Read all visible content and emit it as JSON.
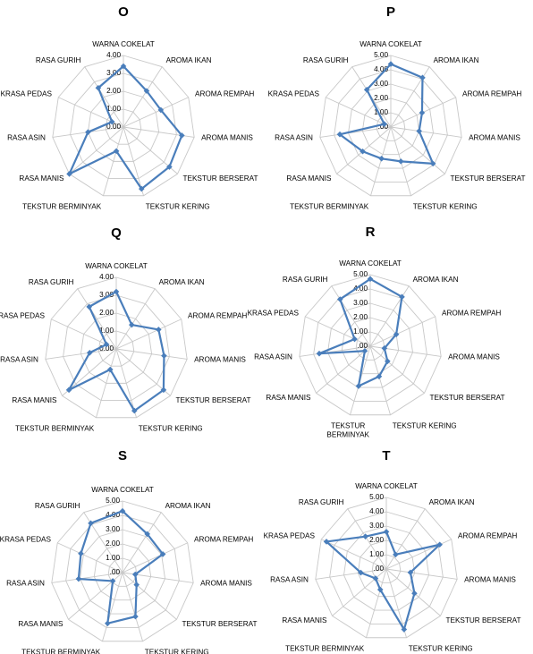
{
  "axes": [
    "WARNA COKELAT",
    "AROMA IKAN",
    "AROMA REMPAH",
    "AROMA MANIS",
    "TEKSTUR BERSERAT",
    "TEKSTUR KERING",
    "TEKSTUR BERMINYAK",
    "RASA MANIS",
    "RASA ASIN",
    "KRASA PEDAS",
    "RASA GURIH"
  ],
  "colors": {
    "series": "#4a7ebb",
    "grid": "#c8c8c8",
    "spoke": "#c8c8c8"
  },
  "chart_data": [
    {
      "type": "radar",
      "title": "O",
      "rmax": 4,
      "ticks": [
        "4.00",
        "3.00",
        "2.00",
        "1.00",
        "0.00"
      ],
      "series": [
        {
          "values": [
            3.4,
            2.4,
            2.3,
            3.3,
            3.4,
            3.6,
            1.4,
            4.0,
            2.0,
            0.7,
            2.6
          ]
        }
      ]
    },
    {
      "type": "radar",
      "title": "P",
      "rmax": 5,
      "ticks": [
        "5.00",
        "4.00",
        "3.00",
        "2.00",
        "1.00",
        ".00"
      ],
      "series": [
        {
          "values": [
            4.4,
            4.1,
            2.4,
            2.0,
            3.9,
            2.5,
            2.3,
            2.6,
            3.6,
            0.5,
            3.1
          ]
        }
      ]
    },
    {
      "type": "radar",
      "title": "Q",
      "rmax": 4,
      "ticks": [
        "4.00",
        "3.00",
        "2.00",
        "1.00",
        "0.00"
      ],
      "series": [
        {
          "values": [
            3.2,
            1.6,
            2.6,
            2.7,
            3.5,
            3.6,
            1.2,
            3.5,
            1.5,
            0.6,
            2.8
          ]
        }
      ]
    },
    {
      "type": "radar",
      "title": "R",
      "rmax": 5,
      "ticks": [
        "5.00",
        "4.00",
        "3.00",
        "2.00",
        "1.00",
        ".00"
      ],
      "series": [
        {
          "values": [
            4.7,
            4.1,
            2.0,
            1.0,
            1.6,
            2.2,
            2.9,
            0.5,
            3.6,
            1.2,
            3.9
          ]
        }
      ]
    },
    {
      "type": "radar",
      "title": "S",
      "rmax": 5,
      "ticks": [
        "5.00",
        "4.00",
        "3.00",
        "2.00",
        "1.00",
        ".00"
      ],
      "series": [
        {
          "values": [
            4.3,
            3.2,
            3.1,
            0.9,
            1.3,
            3.2,
            3.7,
            0.9,
            3.1,
            3.2,
            4.1
          ]
        }
      ]
    },
    {
      "type": "radar",
      "title": "T",
      "rmax": 5,
      "ticks": [
        "5.00",
        "4.00",
        "3.00",
        "2.00",
        "1.00",
        ".00"
      ],
      "series": [
        {
          "values": [
            2.6,
            1.2,
            4.1,
            1.7,
            2.6,
            4.4,
            1.5,
            1.0,
            1.8,
            4.6,
            2.7
          ]
        }
      ]
    }
  ]
}
